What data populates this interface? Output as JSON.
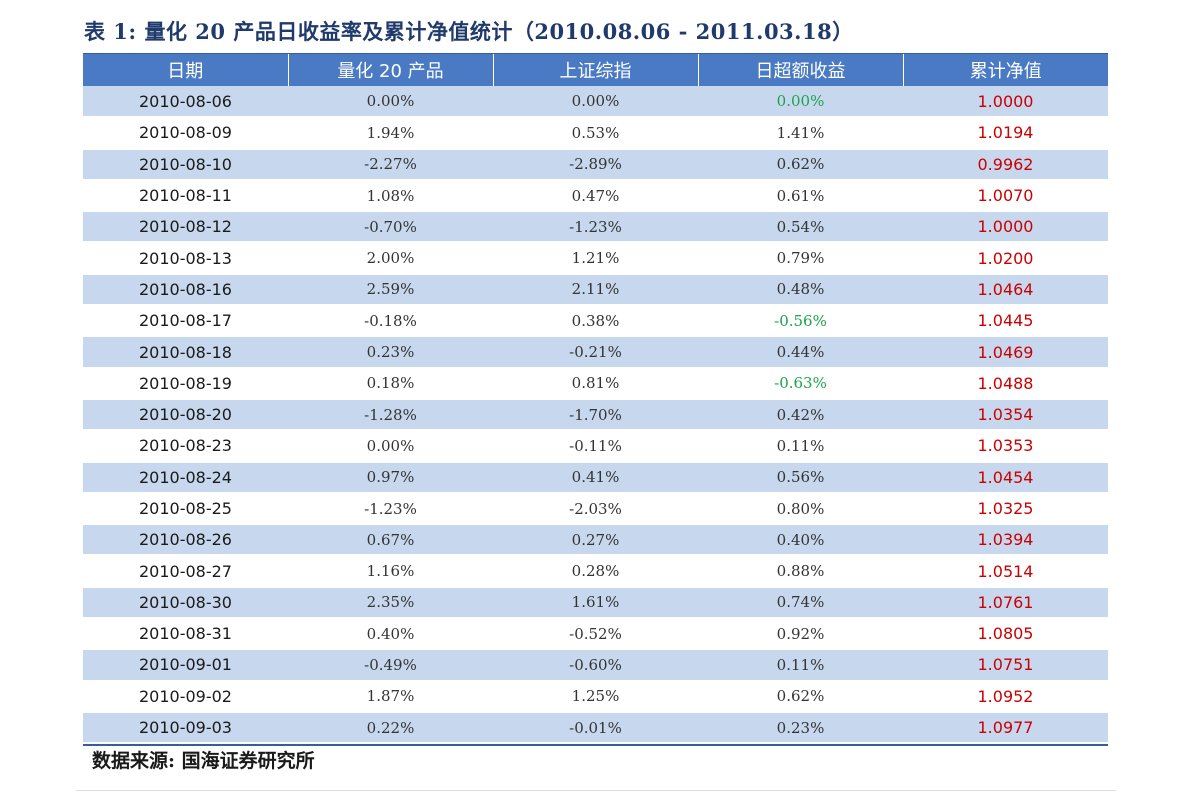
{
  "title": "表 1: 量化 20 产品日收益率及累计净值统计（2010.08.06 - 2011.03.18）",
  "headers": [
    "日期",
    "量化 20 产品",
    "上证综指",
    "日超额收益",
    "累计净值"
  ],
  "rows": [
    {
      "date": "2010-08-06",
      "product": "0.00%",
      "index": "0.00%",
      "excess": "0.00%",
      "excess_color": "green",
      "nav": "1.0000"
    },
    {
      "date": "2010-08-09",
      "product": "1.94%",
      "index": "0.53%",
      "excess": "1.41%",
      "excess_color": "default",
      "nav": "1.0194"
    },
    {
      "date": "2010-08-10",
      "product": "-2.27%",
      "index": "-2.89%",
      "excess": "0.62%",
      "excess_color": "default",
      "nav": "0.9962"
    },
    {
      "date": "2010-08-11",
      "product": "1.08%",
      "index": "0.47%",
      "excess": "0.61%",
      "excess_color": "default",
      "nav": "1.0070"
    },
    {
      "date": "2010-08-12",
      "product": "-0.70%",
      "index": "-1.23%",
      "excess": "0.54%",
      "excess_color": "default",
      "nav": "1.0000"
    },
    {
      "date": "2010-08-13",
      "product": "2.00%",
      "index": "1.21%",
      "excess": "0.79%",
      "excess_color": "default",
      "nav": "1.0200"
    },
    {
      "date": "2010-08-16",
      "product": "2.59%",
      "index": "2.11%",
      "excess": "0.48%",
      "excess_color": "default",
      "nav": "1.0464"
    },
    {
      "date": "2010-08-17",
      "product": "-0.18%",
      "index": "0.38%",
      "excess": "-0.56%",
      "excess_color": "green",
      "nav": "1.0445"
    },
    {
      "date": "2010-08-18",
      "product": "0.23%",
      "index": "-0.21%",
      "excess": "0.44%",
      "excess_color": "default",
      "nav": "1.0469"
    },
    {
      "date": "2010-08-19",
      "product": "0.18%",
      "index": "0.81%",
      "excess": "-0.63%",
      "excess_color": "green",
      "nav": "1.0488"
    },
    {
      "date": "2010-08-20",
      "product": "-1.28%",
      "index": "-1.70%",
      "excess": "0.42%",
      "excess_color": "default",
      "nav": "1.0354"
    },
    {
      "date": "2010-08-23",
      "product": "0.00%",
      "index": "-0.11%",
      "excess": "0.11%",
      "excess_color": "default",
      "nav": "1.0353"
    },
    {
      "date": "2010-08-24",
      "product": "0.97%",
      "index": "0.41%",
      "excess": "0.56%",
      "excess_color": "default",
      "nav": "1.0454"
    },
    {
      "date": "2010-08-25",
      "product": "-1.23%",
      "index": "-2.03%",
      "excess": "0.80%",
      "excess_color": "default",
      "nav": "1.0325"
    },
    {
      "date": "2010-08-26",
      "product": "0.67%",
      "index": "0.27%",
      "excess": "0.40%",
      "excess_color": "default",
      "nav": "1.0394"
    },
    {
      "date": "2010-08-27",
      "product": "1.16%",
      "index": "0.28%",
      "excess": "0.88%",
      "excess_color": "default",
      "nav": "1.0514"
    },
    {
      "date": "2010-08-30",
      "product": "2.35%",
      "index": "1.61%",
      "excess": "0.74%",
      "excess_color": "default",
      "nav": "1.0761"
    },
    {
      "date": "2010-08-31",
      "product": "0.40%",
      "index": "-0.52%",
      "excess": "0.92%",
      "excess_color": "default",
      "nav": "1.0805"
    },
    {
      "date": "2010-09-01",
      "product": "-0.49%",
      "index": "-0.60%",
      "excess": "0.11%",
      "excess_color": "default",
      "nav": "1.0751"
    },
    {
      "date": "2010-09-02",
      "product": "1.87%",
      "index": "1.25%",
      "excess": "0.62%",
      "excess_color": "default",
      "nav": "1.0952"
    },
    {
      "date": "2010-09-03",
      "product": "0.22%",
      "index": "-0.01%",
      "excess": "0.23%",
      "excess_color": "default",
      "nav": "1.0977"
    }
  ],
  "source": "数据来源: 国海证券研究所",
  "colors": {
    "header_bg": "#4a7ac4",
    "stripe_bg": "#c7d8ee",
    "nav_text": "#cc0000",
    "green_text": "#1aa34a",
    "title_text": "#1f3a6b"
  }
}
